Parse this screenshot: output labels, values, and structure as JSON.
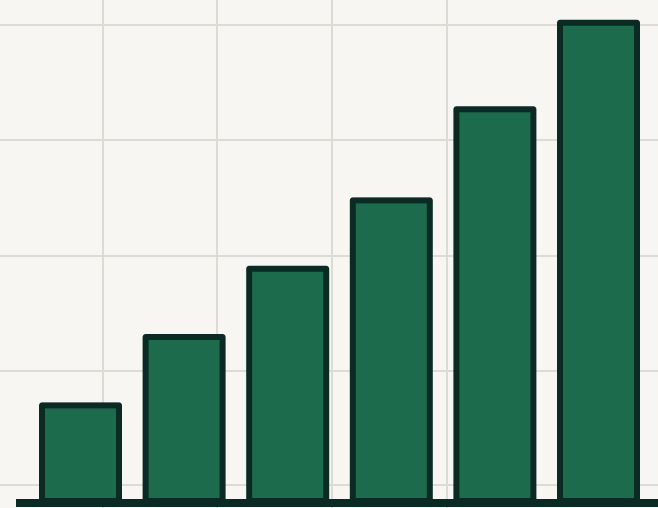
{
  "chart_data": {
    "type": "bar",
    "title": "",
    "xlabel": "",
    "ylabel": "",
    "categories": [
      "",
      "",
      "",
      "",
      "",
      ""
    ],
    "values": [
      21,
      36,
      51,
      66,
      86,
      105
    ],
    "ylim": [
      0,
      110
    ],
    "grid": true,
    "legend": "none",
    "colors": {
      "background": "#f7f6f2",
      "bar_fill": "#1b6b4c",
      "bar_stroke": "#0b2a24",
      "gridline": "#dcdcd7",
      "axis": "#0b2a24"
    }
  }
}
